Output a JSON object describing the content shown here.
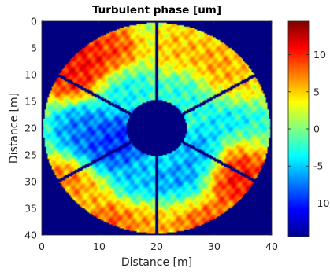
{
  "chart_data": {
    "type": "heatmap",
    "title": "Turbulent phase [um]",
    "xlabel": "Distance [m]",
    "ylabel": "Distance [m]",
    "xlim": [
      0,
      40
    ],
    "ylim": [
      0,
      40
    ],
    "y_reversed": true,
    "xticks": [
      "0",
      "10",
      "20",
      "30",
      "40"
    ],
    "yticks": [
      "0",
      "5",
      "10",
      "15",
      "20",
      "25",
      "30",
      "35",
      "40"
    ],
    "colorbar": {
      "colormap": "jet",
      "range": [
        -14.5,
        14.5
      ],
      "ticks": [
        "10",
        "5",
        "0",
        "-5",
        "-10"
      ],
      "tick_values": [
        10,
        5,
        0,
        -5,
        -10
      ]
    },
    "grid": false,
    "pupil": {
      "center": [
        20,
        20
      ],
      "outer_radius": 19.7,
      "inner_radius": 5.2,
      "spider_angles_deg": [
        90,
        30,
        -30,
        -90,
        -150,
        150
      ],
      "spider_width": 0.55
    },
    "hotspots": [
      {
        "x": 8,
        "y": 8,
        "value": 12
      },
      {
        "x": 12,
        "y": 5.5,
        "value": 10
      },
      {
        "x": 5,
        "y": 10,
        "value": 11
      },
      {
        "x": 30,
        "y": 8,
        "value": 7
      },
      {
        "x": 24,
        "y": 5,
        "value": 6
      },
      {
        "x": 34,
        "y": 12,
        "value": 6
      },
      {
        "x": 35,
        "y": 27,
        "value": 13
      },
      {
        "x": 33,
        "y": 30,
        "value": 11
      },
      {
        "x": 37,
        "y": 26,
        "value": 9
      },
      {
        "x": 28,
        "y": 38,
        "value": 11
      },
      {
        "x": 25,
        "y": 36,
        "value": 7
      },
      {
        "x": 5,
        "y": 30,
        "value": 9
      },
      {
        "x": 8,
        "y": 33,
        "value": 5
      },
      {
        "x": 12,
        "y": 37,
        "value": 10
      },
      {
        "x": 17,
        "y": 38,
        "value": 7
      },
      {
        "x": 10,
        "y": 24,
        "value": -10
      },
      {
        "x": 14,
        "y": 22,
        "value": -11
      },
      {
        "x": 7,
        "y": 20,
        "value": -8
      },
      {
        "x": 24,
        "y": 31,
        "value": -8
      },
      {
        "x": 28,
        "y": 25,
        "value": -7
      },
      {
        "x": 25,
        "y": 14,
        "value": -3
      },
      {
        "x": 33,
        "y": 18,
        "value": -5
      },
      {
        "x": 14,
        "y": 13,
        "value": -4
      },
      {
        "x": 16,
        "y": 30,
        "value": -6
      },
      {
        "x": 37,
        "y": 22,
        "value": -3
      }
    ]
  }
}
